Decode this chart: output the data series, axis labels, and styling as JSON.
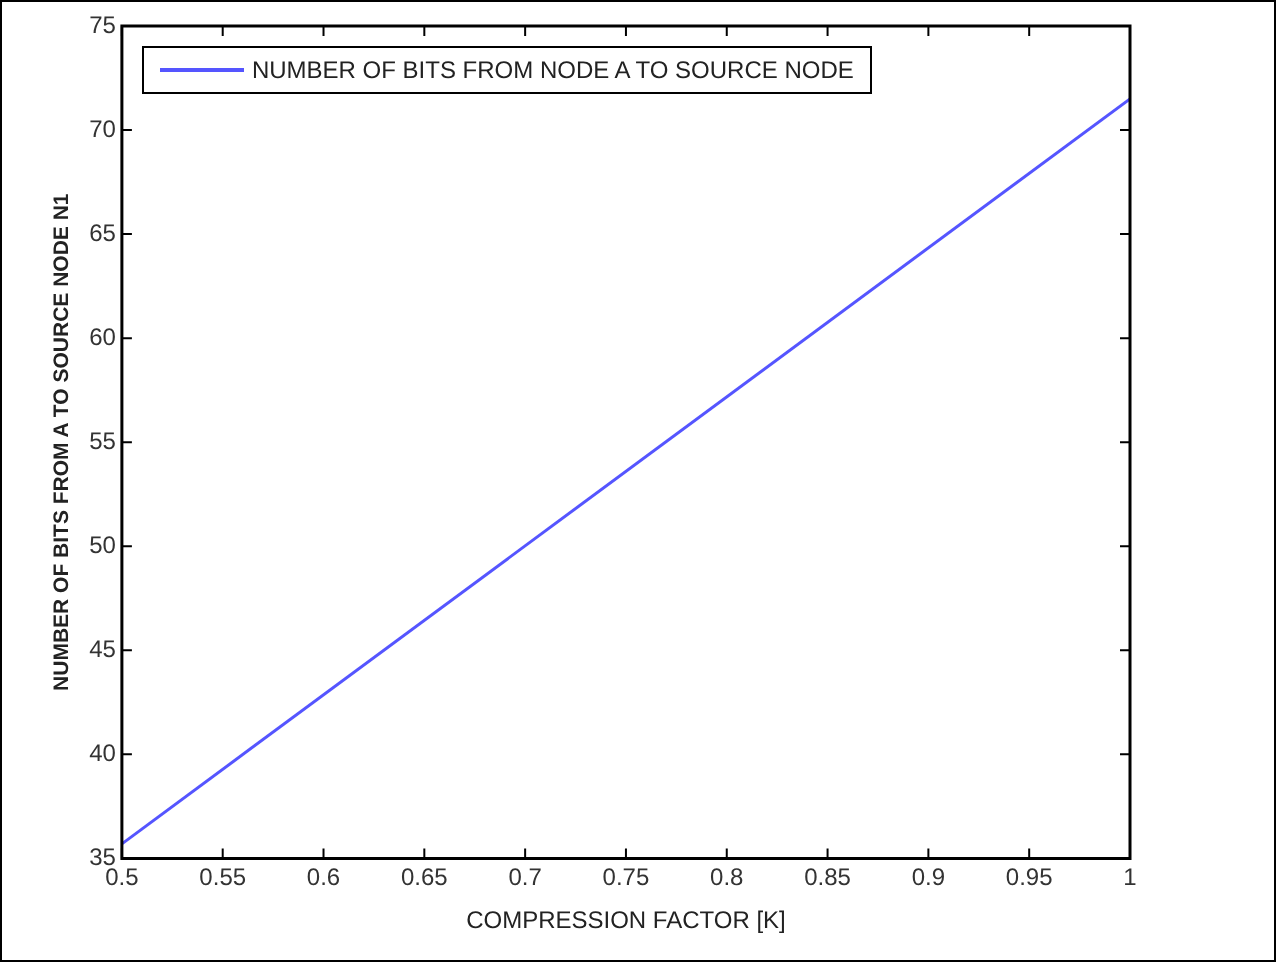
{
  "chart_data": {
    "type": "line",
    "xlabel": "COMPRESSION FACTOR [K]",
    "ylabel": "NUMBER OF BITS FROM A TO SOURCE NODE N1",
    "x": [
      0.5,
      1
    ],
    "series": [
      {
        "name": "NUMBER OF BITS FROM NODE A TO SOURCE NODE",
        "color": "#5555ff",
        "values": [
          35.7,
          71.5
        ]
      }
    ],
    "xlim": [
      0.5,
      1
    ],
    "xticks": [
      0.5,
      0.55,
      0.6,
      0.65,
      0.7,
      0.75,
      0.8,
      0.85,
      0.9,
      0.95,
      1
    ],
    "ylim": [
      35,
      75
    ],
    "yticks": [
      35,
      40,
      45,
      50,
      55,
      60,
      65,
      70,
      75
    ],
    "grid": false,
    "legend": "top left",
    "marker": "none",
    "line_style": "solid"
  }
}
